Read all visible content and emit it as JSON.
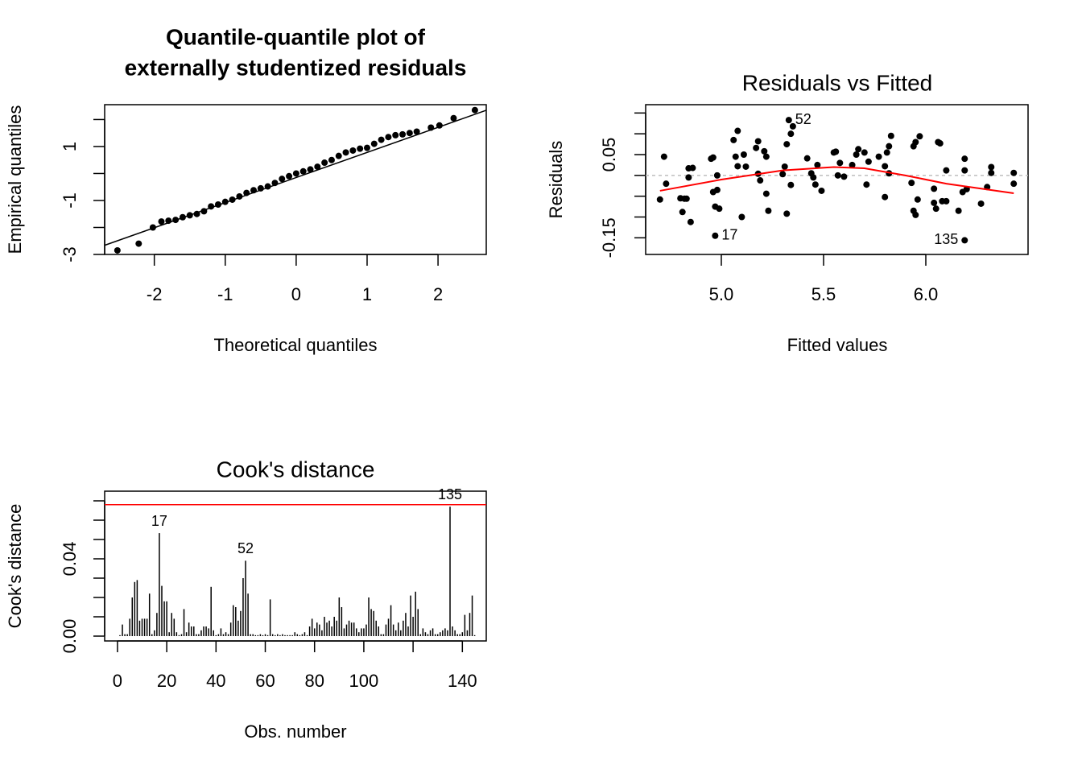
{
  "chart_data": [
    {
      "type": "qq",
      "title": [
        "Quantile-quantile plot of",
        "externally studentized residuals"
      ],
      "title_bold": true,
      "xlabel": "Theoretical quantiles",
      "ylabel": "Empirical quantiles",
      "xlim": [
        -2.7,
        2.68
      ],
      "ylim": [
        -3.0,
        2.55
      ],
      "xticks": [
        -2,
        -1,
        0,
        1,
        2
      ],
      "yticks": [
        -3,
        -1,
        1
      ],
      "yminorticks": [
        -2,
        0,
        2
      ],
      "color": "#000000",
      "x": [
        -2.52,
        -2.22,
        -2.02,
        -1.9,
        -1.8,
        -1.7,
        -1.6,
        -1.5,
        -1.4,
        -1.3,
        -1.2,
        -1.1,
        -1.0,
        -0.9,
        -0.8,
        -0.7,
        -0.6,
        -0.5,
        -0.4,
        -0.3,
        -0.2,
        -0.1,
        0,
        0.1,
        0.2,
        0.3,
        0.4,
        0.5,
        0.6,
        0.7,
        0.8,
        0.9,
        1.0,
        1.1,
        1.2,
        1.3,
        1.4,
        1.5,
        1.6,
        1.7,
        1.9,
        2.02,
        2.22,
        2.52
      ],
      "y": [
        -2.85,
        -2.6,
        -2.0,
        -1.78,
        -1.75,
        -1.72,
        -1.62,
        -1.55,
        -1.5,
        -1.4,
        -1.22,
        -1.15,
        -1.05,
        -0.97,
        -0.85,
        -0.72,
        -0.62,
        -0.55,
        -0.48,
        -0.35,
        -0.2,
        -0.1,
        0.0,
        0.08,
        0.15,
        0.25,
        0.4,
        0.5,
        0.65,
        0.78,
        0.85,
        0.92,
        0.95,
        1.1,
        1.25,
        1.35,
        1.42,
        1.45,
        1.5,
        1.55,
        1.7,
        1.78,
        2.05,
        2.35
      ],
      "reference_line": {
        "intercept": -0.15,
        "slope": 0.93,
        "color": "#000000"
      }
    },
    {
      "type": "residuals",
      "title": [
        "Residuals vs Fitted"
      ],
      "title_bold": false,
      "xlabel": "Fitted values",
      "ylabel": "Residuals",
      "xlim": [
        4.63,
        6.5
      ],
      "ylim": [
        -0.19,
        0.17
      ],
      "xticks": [
        {
          "value": 5.0,
          "label": "5.0"
        },
        5.5,
        {
          "value": 6.0,
          "label": "6.0"
        }
      ],
      "yticks": [
        -0.15,
        0.05
      ],
      "yminorticks": [
        -0.1,
        -0.05,
        0,
        0.1,
        0.15
      ],
      "color": "#000000",
      "x": [
        4.7,
        4.72,
        4.73,
        4.8,
        4.81,
        4.82,
        4.83,
        4.84,
        4.85,
        4.86,
        4.84,
        4.95,
        4.96,
        4.96,
        4.97,
        4.98,
        4.98,
        4.97,
        4.99,
        5.06,
        5.07,
        5.08,
        5.08,
        5.1,
        5.11,
        5.12,
        5.17,
        5.18,
        5.18,
        5.19,
        5.21,
        5.22,
        5.22,
        5.23,
        5.3,
        5.31,
        5.32,
        5.32,
        5.33,
        5.34,
        5.34,
        5.35,
        5.42,
        5.44,
        5.45,
        5.46,
        5.47,
        5.49,
        5.55,
        5.56,
        5.57,
        5.58,
        5.6,
        5.64,
        5.66,
        5.67,
        5.7,
        5.71,
        5.72,
        5.77,
        5.8,
        5.8,
        5.81,
        5.82,
        5.82,
        5.83,
        5.93,
        5.94,
        5.94,
        5.95,
        5.95,
        5.96,
        5.97,
        6.04,
        6.04,
        6.05,
        6.06,
        6.07,
        6.08,
        6.1,
        6.1,
        6.16,
        6.18,
        6.19,
        6.19,
        6.2,
        6.19,
        6.27,
        6.3,
        6.32,
        6.32,
        6.43,
        6.43
      ],
      "y": [
        -0.058,
        0.045,
        -0.02,
        -0.055,
        -0.088,
        -0.056,
        -0.056,
        0.017,
        -0.112,
        0.018,
        -0.005,
        0.04,
        0.043,
        -0.04,
        -0.075,
        0.0,
        -0.035,
        -0.145,
        -0.08,
        0.085,
        0.045,
        0.107,
        0.022,
        -0.1,
        0.05,
        0.021,
        0.066,
        0.004,
        0.082,
        -0.012,
        0.058,
        0.045,
        -0.044,
        -0.085,
        0.003,
        0.021,
        0.075,
        -0.092,
        0.133,
        0.1,
        -0.023,
        0.118,
        0.041,
        0.005,
        -0.005,
        -0.022,
        0.025,
        -0.037,
        0.055,
        0.057,
        0.0,
        0.03,
        -0.003,
        0.025,
        0.05,
        0.063,
        0.055,
        -0.022,
        0.033,
        0.045,
        0.022,
        -0.052,
        0.055,
        0.07,
        0.005,
        0.095,
        -0.018,
        0.07,
        -0.085,
        -0.095,
        0.08,
        -0.058,
        0.094,
        -0.032,
        -0.066,
        -0.08,
        0.08,
        0.077,
        -0.062,
        0.012,
        -0.062,
        -0.085,
        -0.04,
        0.04,
        0.012,
        -0.033,
        -0.156,
        -0.068,
        -0.028,
        0.02,
        0.006,
        -0.02,
        0.006
      ],
      "smooth": {
        "color": "#ff0000",
        "x": [
          4.7,
          5.0,
          5.3,
          5.55,
          5.7,
          5.9,
          6.1,
          6.43
        ],
        "y": [
          -0.037,
          -0.01,
          0.012,
          0.02,
          0.017,
          0.0,
          -0.02,
          -0.043
        ]
      },
      "hline": {
        "value": 0,
        "color": "#bebebe"
      },
      "annotations": [
        {
          "text": "52",
          "x": 5.33,
          "y": 0.133
        },
        {
          "text": "17",
          "x": 4.97,
          "y": -0.145
        },
        {
          "text": "135",
          "x": 6.19,
          "y": -0.156
        }
      ]
    },
    {
      "type": "needle",
      "title": [
        "Cook's distance"
      ],
      "title_bold": false,
      "xlabel": "Obs. number",
      "ylabel": "Cook's distance",
      "xlim": [
        -5.2,
        149.7
      ],
      "ylim": [
        -0.0025,
        0.075
      ],
      "xticks": [
        0,
        20,
        40,
        60,
        80,
        100,
        140
      ],
      "xminorticks": [
        120
      ],
      "yticks": [
        {
          "value": 0,
          "label": "0.00"
        },
        {
          "value": 0.04,
          "label": "0.04"
        }
      ],
      "yminorticks": [
        0.01,
        0.02,
        0.03,
        0.05,
        0.06,
        0.07
      ],
      "color": "#000000",
      "x": [
        1,
        2,
        3,
        4,
        5,
        6,
        7,
        8,
        9,
        10,
        11,
        12,
        13,
        14,
        15,
        16,
        17,
        18,
        19,
        20,
        21,
        22,
        23,
        24,
        25,
        26,
        27,
        28,
        29,
        30,
        31,
        32,
        33,
        34,
        35,
        36,
        37,
        38,
        39,
        40,
        41,
        42,
        43,
        44,
        45,
        46,
        47,
        48,
        49,
        50,
        51,
        52,
        53,
        54,
        55,
        56,
        57,
        58,
        59,
        60,
        61,
        62,
        63,
        64,
        65,
        66,
        67,
        68,
        69,
        70,
        71,
        72,
        73,
        74,
        75,
        76,
        77,
        78,
        79,
        80,
        81,
        82,
        83,
        84,
        85,
        86,
        87,
        88,
        89,
        90,
        91,
        92,
        93,
        94,
        95,
        96,
        97,
        98,
        99,
        100,
        101,
        102,
        103,
        104,
        105,
        106,
        107,
        108,
        109,
        110,
        111,
        112,
        113,
        114,
        115,
        116,
        117,
        118,
        119,
        120,
        121,
        122,
        123,
        124,
        125,
        126,
        127,
        128,
        129,
        130,
        131,
        132,
        133,
        134,
        135,
        136,
        137,
        138,
        139,
        140,
        141,
        142,
        143,
        144,
        145
      ],
      "values": [
        0.0005,
        0.006,
        0.001,
        0.001,
        0.009,
        0.02,
        0.028,
        0.029,
        0.008,
        0.009,
        0.009,
        0.009,
        0.022,
        0.001,
        0.003,
        0.012,
        0.0533,
        0.026,
        0.018,
        0.018,
        0.002,
        0.012,
        0.009,
        0.002,
        0.0005,
        0.001,
        0.014,
        0.002,
        0.007,
        0.005,
        0.005,
        0.001,
        0.001,
        0.003,
        0.005,
        0.005,
        0.004,
        0.0255,
        0.003,
        0.0005,
        0.001,
        0.004,
        0.001,
        0.002,
        0.001,
        0.007,
        0.016,
        0.015,
        0.008,
        0.013,
        0.03,
        0.039,
        0.022,
        0.001,
        0.001,
        0.0005,
        0.0005,
        0.001,
        0.0005,
        0.001,
        0.0005,
        0.019,
        0.001,
        0.0005,
        0.001,
        0.0005,
        0.001,
        0.0005,
        0.0005,
        0.0005,
        0.0005,
        0.002,
        0.001,
        0.0005,
        0.001,
        0.002,
        0.0005,
        0.005,
        0.009,
        0.004,
        0.007,
        0.006,
        0.003,
        0.01,
        0.007,
        0.008,
        0.005,
        0.01,
        0.008,
        0.02,
        0.015,
        0.004,
        0.006,
        0.008,
        0.007,
        0.007,
        0.004,
        0.002,
        0.004,
        0.004,
        0.006,
        0.02,
        0.014,
        0.013,
        0.008,
        0.005,
        0.001,
        0.001,
        0.006,
        0.009,
        0.016,
        0.006,
        0.003,
        0.007,
        0.003,
        0.008,
        0.012,
        0.005,
        0.021,
        0.01,
        0.023,
        0.014,
        0.001,
        0.004,
        0.002,
        0.001,
        0.003,
        0.004,
        0.001,
        0.001,
        0.002,
        0.003,
        0.004,
        0.003,
        0.067,
        0.005,
        0.003,
        0.001,
        0.001,
        0.002,
        0.011,
        0.003,
        0.012,
        0.021,
        0.0005
      ],
      "hline": {
        "value": 0.068,
        "color": "#ff0000"
      },
      "annotations": [
        {
          "text": "17",
          "x": 17,
          "y": 0.0533
        },
        {
          "text": "52",
          "x": 52,
          "y": 0.039
        },
        {
          "text": "135",
          "x": 135,
          "y": 0.067
        }
      ]
    }
  ]
}
